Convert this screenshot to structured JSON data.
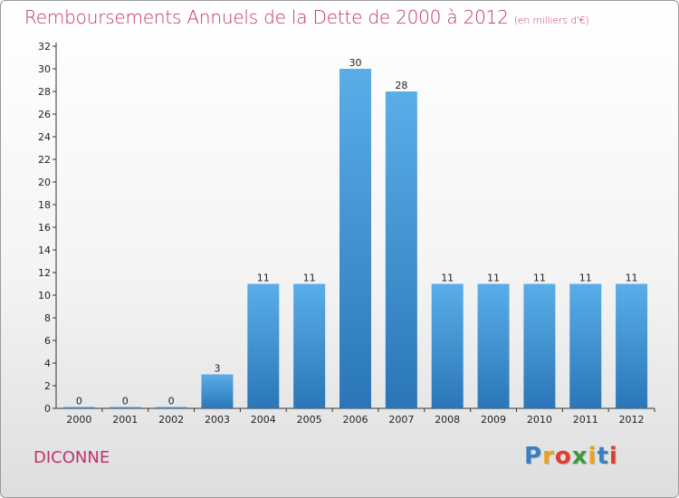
{
  "title": "Remboursements Annuels de la Dette de 2000 à 2012",
  "unit_note": "(en milliers d'€)",
  "commune": "DICONNE",
  "logo": {
    "letters": [
      "P",
      "r",
      "o",
      "x",
      "i",
      "t",
      "i"
    ],
    "colors": [
      "#3a7fc4",
      "#e9a21a",
      "#e23c2c",
      "#3a9a3a",
      "#e9a21a",
      "#3a7fc4",
      "#e23c2c"
    ]
  },
  "colors": {
    "bar": "#3d8fd6",
    "bar_light": "#5aaee8",
    "bar_dark": "#2a76b8",
    "title": "#c0336e"
  },
  "chart_data": {
    "type": "bar",
    "title": "Remboursements Annuels de la Dette de 2000 à 2012",
    "xlabel": "",
    "ylabel": "",
    "categories": [
      "2000",
      "2001",
      "2002",
      "2003",
      "2004",
      "2005",
      "2006",
      "2007",
      "2008",
      "2009",
      "2010",
      "2011",
      "2012"
    ],
    "values": [
      0,
      0,
      0,
      3,
      11,
      11,
      30,
      28,
      11,
      11,
      11,
      11,
      11
    ],
    "value_labels": [
      "0",
      "0",
      "0",
      "3",
      "11",
      "11",
      "30",
      "28",
      "11",
      "11",
      "11",
      "11",
      "11"
    ],
    "ylim": [
      0,
      32
    ],
    "yticks": [
      0,
      2,
      4,
      6,
      8,
      10,
      12,
      14,
      16,
      18,
      20,
      22,
      24,
      26,
      28,
      30,
      32
    ],
    "grid": false,
    "legend": "none"
  }
}
